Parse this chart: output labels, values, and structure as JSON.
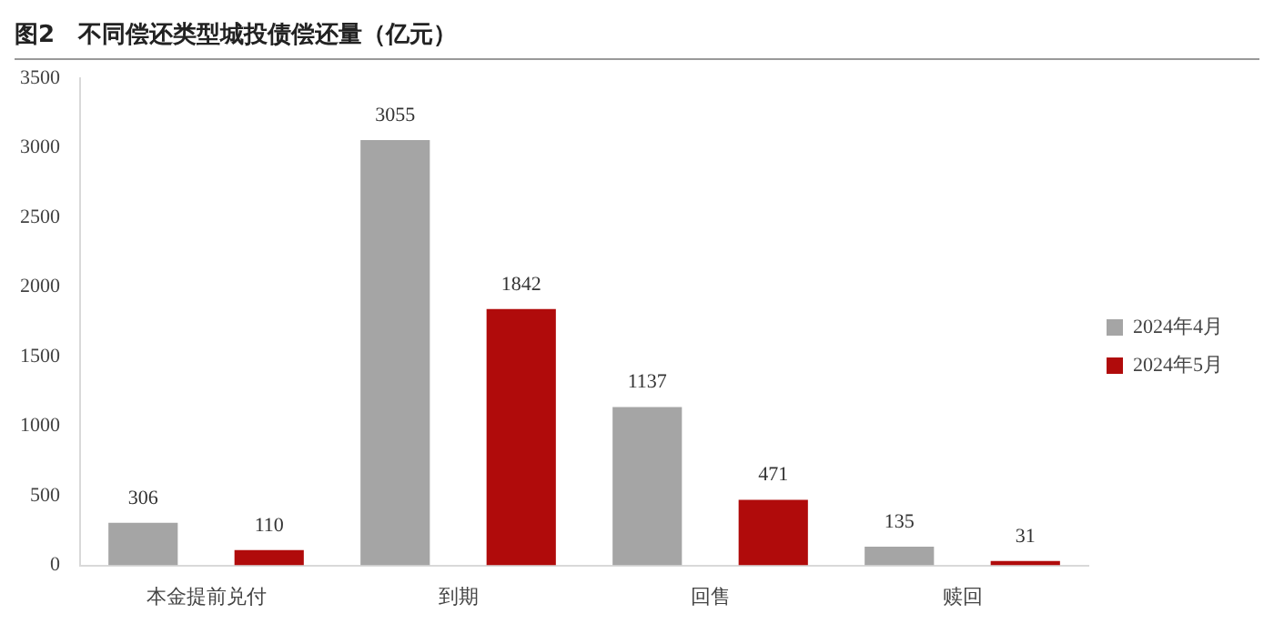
{
  "chart_data": {
    "type": "bar",
    "title": "图2　不同偿还类型城投债偿还量（亿元）",
    "categories": [
      "本金提前兑付",
      "到期",
      "回售",
      "赎回"
    ],
    "series": [
      {
        "name": "2024年4月",
        "color": "#a5a5a5",
        "values": [
          306,
          3055,
          1137,
          135
        ]
      },
      {
        "name": "2024年5月",
        "color": "#b00b0b",
        "values": [
          110,
          1842,
          471,
          31
        ]
      }
    ],
    "ylim": [
      0,
      3500
    ],
    "yticks": [
      0,
      500,
      1000,
      1500,
      2000,
      2500,
      3000,
      3500
    ],
    "grid": false,
    "legend": "right",
    "data_labels": true
  }
}
